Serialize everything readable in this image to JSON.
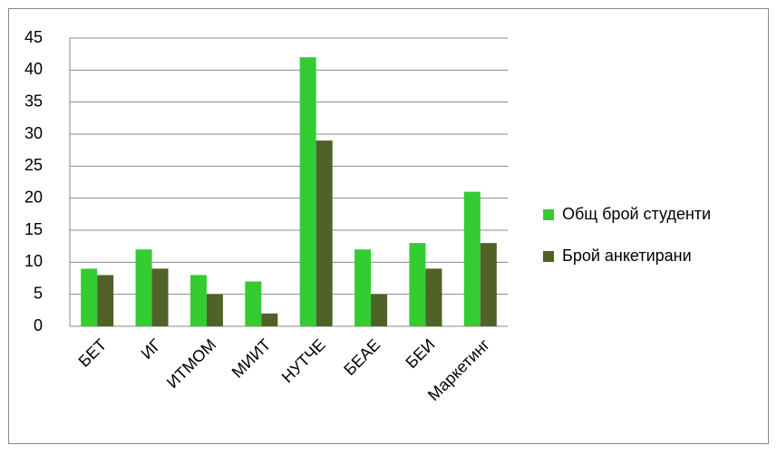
{
  "chart_data": {
    "type": "bar",
    "categories": [
      "БЕТ",
      "ИГ",
      "ИТМОМ",
      "МИИТ",
      "НУТЧЕ",
      "БЕАЕ",
      "БЕИ",
      "Маркетинг"
    ],
    "series": [
      {
        "name": "Общ брой студенти",
        "color": "#33cc33",
        "values": [
          9,
          12,
          8,
          7,
          42,
          12,
          13,
          21
        ]
      },
      {
        "name": "Брой анкетирани",
        "color": "#4f6228",
        "values": [
          8,
          9,
          5,
          2,
          29,
          5,
          9,
          13
        ]
      }
    ],
    "ylim": [
      0,
      45
    ],
    "yticks": [
      0,
      5,
      10,
      15,
      20,
      25,
      30,
      35,
      40,
      45
    ],
    "grid": true,
    "legend": "right"
  }
}
